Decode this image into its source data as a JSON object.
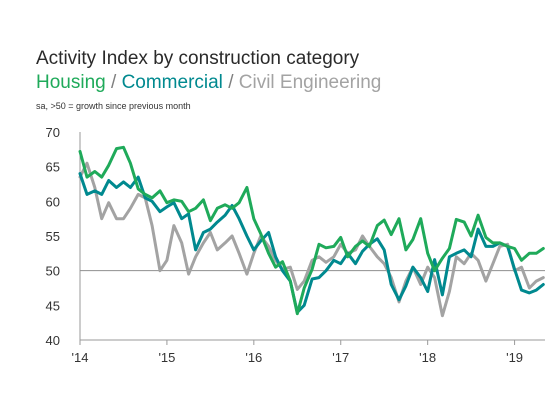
{
  "chart_data": {
    "type": "line",
    "title": "Activity Index by construction category",
    "subtitle_parts": [
      {
        "text": "Housing",
        "series": "Housing"
      },
      {
        "text": " / ",
        "series": null
      },
      {
        "text": "Commercial",
        "series": "Commercial"
      },
      {
        "text": " / ",
        "series": null
      },
      {
        "text": "Civil Engineering",
        "series": "Civil Engineering"
      }
    ],
    "note": "sa, >50 = growth since previous month",
    "xlabel": "",
    "ylabel": "",
    "ylim": [
      40,
      70
    ],
    "yticks": [
      40,
      45,
      50,
      55,
      60,
      65,
      70
    ],
    "xlim": [
      2014,
      2019.35
    ],
    "xticks": [
      {
        "value": 2014,
        "label": "'14"
      },
      {
        "value": 2015,
        "label": "'15"
      },
      {
        "value": 2016,
        "label": "'16"
      },
      {
        "value": 2017,
        "label": "'17"
      },
      {
        "value": 2018,
        "label": "'18"
      },
      {
        "value": 2019,
        "label": "'19"
      }
    ],
    "reference_line": 50,
    "grid": false,
    "legend": "subtitle",
    "series": [
      {
        "name": "Housing",
        "color": "#1faa5a",
        "values": [
          [
            2014.0,
            67.2
          ],
          [
            2014.08,
            63.5
          ],
          [
            2014.17,
            64.3
          ],
          [
            2014.25,
            63.5
          ],
          [
            2014.33,
            65.2
          ],
          [
            2014.42,
            67.6
          ],
          [
            2014.5,
            67.8
          ],
          [
            2014.58,
            65.5
          ],
          [
            2014.67,
            61.8
          ],
          [
            2014.75,
            61.0
          ],
          [
            2014.83,
            60.5
          ],
          [
            2014.92,
            61.5
          ],
          [
            2015.0,
            59.8
          ],
          [
            2015.08,
            60.2
          ],
          [
            2015.17,
            60.0
          ],
          [
            2015.25,
            58.5
          ],
          [
            2015.33,
            59.0
          ],
          [
            2015.42,
            60.2
          ],
          [
            2015.5,
            57.2
          ],
          [
            2015.58,
            59.0
          ],
          [
            2015.67,
            59.5
          ],
          [
            2015.75,
            59.0
          ],
          [
            2015.83,
            59.8
          ],
          [
            2015.92,
            62.0
          ],
          [
            2016.0,
            57.5
          ],
          [
            2016.08,
            55.3
          ],
          [
            2016.17,
            52.5
          ],
          [
            2016.25,
            50.5
          ],
          [
            2016.33,
            51.3
          ],
          [
            2016.42,
            48.5
          ],
          [
            2016.5,
            43.8
          ],
          [
            2016.58,
            47.5
          ],
          [
            2016.67,
            50.2
          ],
          [
            2016.75,
            53.8
          ],
          [
            2016.83,
            53.3
          ],
          [
            2016.92,
            53.5
          ],
          [
            2017.0,
            54.8
          ],
          [
            2017.08,
            52.0
          ],
          [
            2017.17,
            53.5
          ],
          [
            2017.25,
            54.3
          ],
          [
            2017.33,
            53.5
          ],
          [
            2017.42,
            56.5
          ],
          [
            2017.5,
            57.3
          ],
          [
            2017.58,
            55.2
          ],
          [
            2017.67,
            57.5
          ],
          [
            2017.75,
            53.0
          ],
          [
            2017.83,
            54.5
          ],
          [
            2017.92,
            57.5
          ],
          [
            2018.0,
            52.5
          ],
          [
            2018.08,
            50.0
          ],
          [
            2018.17,
            51.8
          ],
          [
            2018.25,
            53.2
          ],
          [
            2018.33,
            57.4
          ],
          [
            2018.42,
            57.0
          ],
          [
            2018.5,
            55.0
          ],
          [
            2018.58,
            58.0
          ],
          [
            2018.67,
            54.8
          ],
          [
            2018.75,
            54.0
          ],
          [
            2018.83,
            54.0
          ],
          [
            2018.92,
            53.5
          ],
          [
            2019.0,
            53.2
          ],
          [
            2019.08,
            51.5
          ],
          [
            2019.17,
            52.5
          ],
          [
            2019.25,
            52.5
          ],
          [
            2019.33,
            53.2
          ]
        ]
      },
      {
        "name": "Commercial",
        "color": "#00898f",
        "values": [
          [
            2014.0,
            64.0
          ],
          [
            2014.08,
            61.0
          ],
          [
            2014.17,
            61.5
          ],
          [
            2014.25,
            61.0
          ],
          [
            2014.33,
            63.0
          ],
          [
            2014.42,
            62.0
          ],
          [
            2014.5,
            62.8
          ],
          [
            2014.58,
            62.0
          ],
          [
            2014.67,
            63.5
          ],
          [
            2014.75,
            60.5
          ],
          [
            2014.83,
            60.0
          ],
          [
            2014.92,
            58.5
          ],
          [
            2015.0,
            59.2
          ],
          [
            2015.08,
            59.8
          ],
          [
            2015.17,
            57.5
          ],
          [
            2015.25,
            58.2
          ],
          [
            2015.33,
            53.0
          ],
          [
            2015.42,
            55.5
          ],
          [
            2015.5,
            56.0
          ],
          [
            2015.58,
            57.0
          ],
          [
            2015.67,
            58.0
          ],
          [
            2015.75,
            59.4
          ],
          [
            2015.83,
            57.5
          ],
          [
            2015.92,
            55.0
          ],
          [
            2016.0,
            53.0
          ],
          [
            2016.08,
            54.3
          ],
          [
            2016.17,
            55.5
          ],
          [
            2016.25,
            52.0
          ],
          [
            2016.33,
            50.0
          ],
          [
            2016.42,
            48.5
          ],
          [
            2016.5,
            44.0
          ],
          [
            2016.58,
            45.0
          ],
          [
            2016.67,
            48.8
          ],
          [
            2016.75,
            49.0
          ],
          [
            2016.83,
            50.0
          ],
          [
            2016.92,
            51.5
          ],
          [
            2017.0,
            51.0
          ],
          [
            2017.08,
            52.5
          ],
          [
            2017.17,
            51.0
          ],
          [
            2017.25,
            52.8
          ],
          [
            2017.33,
            53.8
          ],
          [
            2017.42,
            54.6
          ],
          [
            2017.5,
            53.0
          ],
          [
            2017.58,
            48.0
          ],
          [
            2017.67,
            45.8
          ],
          [
            2017.75,
            47.8
          ],
          [
            2017.83,
            50.5
          ],
          [
            2017.92,
            49.0
          ],
          [
            2018.0,
            47.0
          ],
          [
            2018.08,
            51.6
          ],
          [
            2018.17,
            46.5
          ],
          [
            2018.25,
            52.0
          ],
          [
            2018.33,
            52.5
          ],
          [
            2018.42,
            53.0
          ],
          [
            2018.5,
            52.0
          ],
          [
            2018.58,
            56.0
          ],
          [
            2018.67,
            53.5
          ],
          [
            2018.75,
            53.5
          ],
          [
            2018.83,
            54.0
          ],
          [
            2018.92,
            53.5
          ],
          [
            2019.0,
            50.2
          ],
          [
            2019.08,
            47.2
          ],
          [
            2019.17,
            46.8
          ],
          [
            2019.25,
            47.2
          ],
          [
            2019.33,
            48.0
          ]
        ]
      },
      {
        "name": "Civil Engineering",
        "color": "#a3a3a3",
        "values": [
          [
            2014.0,
            63.5
          ],
          [
            2014.08,
            65.5
          ],
          [
            2014.17,
            62.0
          ],
          [
            2014.25,
            57.5
          ],
          [
            2014.33,
            59.8
          ],
          [
            2014.42,
            57.5
          ],
          [
            2014.5,
            57.5
          ],
          [
            2014.58,
            59.0
          ],
          [
            2014.67,
            61.0
          ],
          [
            2014.75,
            60.5
          ],
          [
            2014.83,
            56.5
          ],
          [
            2014.92,
            50.0
          ],
          [
            2015.0,
            51.5
          ],
          [
            2015.08,
            56.5
          ],
          [
            2015.17,
            54.0
          ],
          [
            2015.25,
            49.5
          ],
          [
            2015.33,
            52.0
          ],
          [
            2015.42,
            54.0
          ],
          [
            2015.5,
            55.5
          ],
          [
            2015.58,
            53.0
          ],
          [
            2015.67,
            54.0
          ],
          [
            2015.75,
            55.0
          ],
          [
            2015.83,
            52.5
          ],
          [
            2015.92,
            49.5
          ],
          [
            2016.0,
            52.5
          ],
          [
            2016.08,
            55.0
          ],
          [
            2016.17,
            53.5
          ],
          [
            2016.25,
            51.5
          ],
          [
            2016.33,
            50.2
          ],
          [
            2016.42,
            50.5
          ],
          [
            2016.5,
            47.3
          ],
          [
            2016.58,
            48.5
          ],
          [
            2016.67,
            51.5
          ],
          [
            2016.75,
            52.0
          ],
          [
            2016.83,
            51.2
          ],
          [
            2016.92,
            52.0
          ],
          [
            2017.0,
            53.8
          ],
          [
            2017.08,
            52.5
          ],
          [
            2017.17,
            53.0
          ],
          [
            2017.25,
            55.0
          ],
          [
            2017.33,
            53.5
          ],
          [
            2017.42,
            52.0
          ],
          [
            2017.5,
            51.0
          ],
          [
            2017.58,
            49.0
          ],
          [
            2017.67,
            45.5
          ],
          [
            2017.75,
            48.5
          ],
          [
            2017.83,
            50.5
          ],
          [
            2017.92,
            48.0
          ],
          [
            2018.0,
            50.5
          ],
          [
            2018.08,
            49.0
          ],
          [
            2018.17,
            43.5
          ],
          [
            2018.25,
            47.0
          ],
          [
            2018.33,
            52.0
          ],
          [
            2018.42,
            51.0
          ],
          [
            2018.5,
            52.5
          ],
          [
            2018.58,
            51.5
          ],
          [
            2018.67,
            48.5
          ],
          [
            2018.75,
            51.0
          ],
          [
            2018.83,
            53.5
          ],
          [
            2018.92,
            53.8
          ],
          [
            2019.0,
            50.0
          ],
          [
            2019.08,
            50.5
          ],
          [
            2019.17,
            47.5
          ],
          [
            2019.25,
            48.5
          ],
          [
            2019.33,
            49.0
          ]
        ]
      }
    ]
  }
}
